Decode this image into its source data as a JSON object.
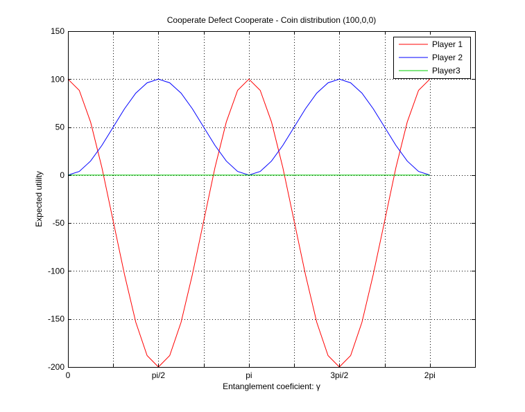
{
  "chart_data": {
    "type": "line",
    "title": "Cooperate Defect Cooperate - Coin distribution (100,0,0)",
    "xlabel": "Entanglement coeficient: γ",
    "ylabel": "Expected utility",
    "xlim": [
      0,
      7.0686
    ],
    "ylim": [
      -200,
      150
    ],
    "x_ticks": [
      {
        "value": 0,
        "label": "0"
      },
      {
        "value": 1.5708,
        "label": "pi/2"
      },
      {
        "value": 3.1416,
        "label": "pi"
      },
      {
        "value": 4.7124,
        "label": "3pi/2"
      },
      {
        "value": 6.2832,
        "label": "2pi"
      }
    ],
    "x_minor_ticks": [
      0.7854,
      2.3562,
      3.927,
      5.4978
    ],
    "y_ticks": [
      {
        "value": 150,
        "label": "150"
      },
      {
        "value": 100,
        "label": "100"
      },
      {
        "value": 50,
        "label": "50"
      },
      {
        "value": 0,
        "label": "0"
      },
      {
        "value": -50,
        "label": "-50"
      },
      {
        "value": -100,
        "label": "-100"
      },
      {
        "value": -150,
        "label": "-150"
      },
      {
        "value": -200,
        "label": "-200"
      }
    ],
    "grid": true,
    "legend_position": "top-right",
    "series": [
      {
        "name": "Player 1",
        "color": "#ff0000",
        "x": [
          0,
          0.1963,
          0.3927,
          0.589,
          0.7854,
          0.9817,
          1.1781,
          1.3744,
          1.5708,
          1.7671,
          1.9635,
          2.1598,
          2.3562,
          2.5525,
          2.7489,
          2.9452,
          3.1416,
          3.3379,
          3.5343,
          3.7306,
          3.927,
          4.1233,
          4.3197,
          4.516,
          4.7124,
          4.9087,
          5.1051,
          5.3014,
          5.4978,
          5.6941,
          5.8905,
          6.0868,
          6.2832
        ],
        "values": [
          100,
          88.3,
          55.3,
          7.9,
          -47.9,
          -103.6,
          -153.4,
          -188.1,
          -200,
          -188.1,
          -153.4,
          -103.6,
          -47.9,
          7.9,
          55.3,
          88.3,
          100,
          88.3,
          55.3,
          7.9,
          -47.9,
          -103.6,
          -153.4,
          -188.1,
          -200,
          -188.1,
          -153.4,
          -103.6,
          -47.9,
          7.9,
          55.3,
          88.3,
          100
        ]
      },
      {
        "name": "Player 2",
        "color": "#0000ff",
        "x": [
          0,
          0.1963,
          0.3927,
          0.589,
          0.7854,
          0.9817,
          1.1781,
          1.3744,
          1.5708,
          1.7671,
          1.9635,
          2.1598,
          2.3562,
          2.5525,
          2.7489,
          2.9452,
          3.1416,
          3.3379,
          3.5343,
          3.7306,
          3.927,
          4.1233,
          4.3197,
          4.516,
          4.7124,
          4.9087,
          5.1051,
          5.3014,
          5.4978,
          5.6941,
          5.8905,
          6.0868,
          6.2832
        ],
        "values": [
          0,
          3.8,
          14.6,
          30.9,
          50,
          69.1,
          85.4,
          96.2,
          100,
          96.2,
          85.4,
          69.1,
          50,
          30.9,
          14.6,
          3.8,
          0,
          3.8,
          14.6,
          30.9,
          50,
          69.1,
          85.4,
          96.2,
          100,
          96.2,
          85.4,
          69.1,
          50,
          30.9,
          14.6,
          3.8,
          0
        ]
      },
      {
        "name": "Player3",
        "color": "#00cc00",
        "x": [
          0,
          6.2832
        ],
        "values": [
          0,
          0
        ]
      }
    ]
  }
}
